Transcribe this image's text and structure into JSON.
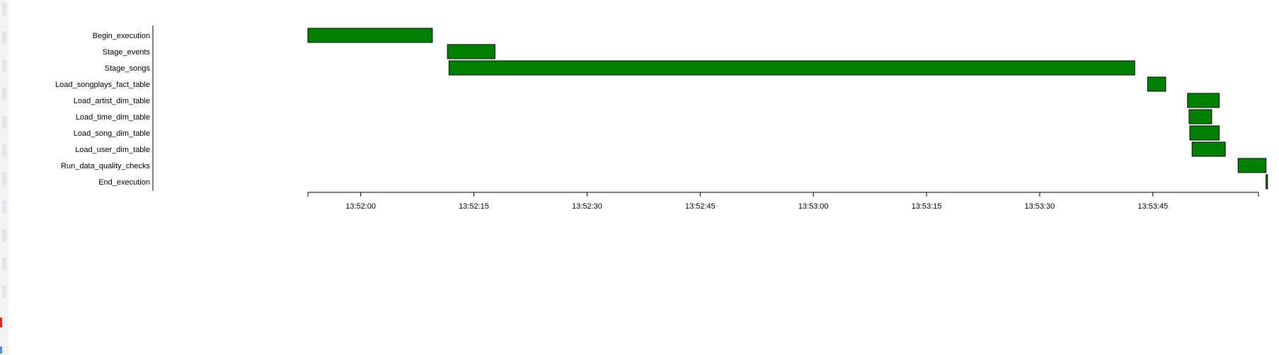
{
  "colors": {
    "bar_fill": "#008000",
    "bar_stroke": "#000000",
    "axis": "#000000",
    "background": "#ffffff"
  },
  "chart_data": {
    "type": "gantt",
    "title": "",
    "xlabel": "",
    "ylabel": "",
    "grid": false,
    "legend": "none",
    "x_range": [
      "13:51:53",
      "13:53:59"
    ],
    "x_ticks": [
      "13:52:00",
      "13:52:15",
      "13:52:30",
      "13:52:45",
      "13:53:00",
      "13:53:15",
      "13:53:30",
      "13:53:45"
    ],
    "tasks": [
      {
        "name": "Begin_execution",
        "start": "13:51:53.0",
        "end": "13:52:09.5"
      },
      {
        "name": "Stage_events",
        "start": "13:52:11.5",
        "end": "13:52:17.8"
      },
      {
        "name": "Stage_songs",
        "start": "13:52:11.7",
        "end": "13:53:42.6"
      },
      {
        "name": "Load_songplays_fact_table",
        "start": "13:53:44.3",
        "end": "13:53:46.7"
      },
      {
        "name": "Load_artist_dim_table",
        "start": "13:53:49.6",
        "end": "13:53:53.8"
      },
      {
        "name": "Load_time_dim_table",
        "start": "13:53:49.8",
        "end": "13:53:52.8"
      },
      {
        "name": "Load_song_dim_table",
        "start": "13:53:49.9",
        "end": "13:53:53.8"
      },
      {
        "name": "Load_user_dim_table",
        "start": "13:53:50.2",
        "end": "13:53:54.6"
      },
      {
        "name": "Run_data_quality_checks",
        "start": "13:53:56.3",
        "end": "13:53:60.0"
      },
      {
        "name": "End_execution",
        "start": "13:53:60.0",
        "end": "13:53:60.2"
      }
    ]
  }
}
